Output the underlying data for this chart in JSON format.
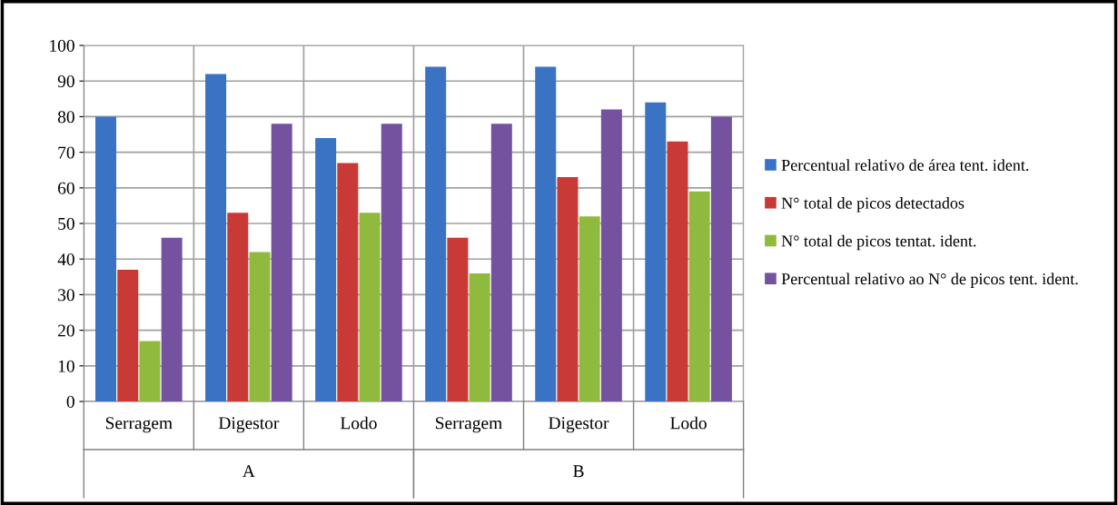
{
  "chart_data": {
    "type": "bar",
    "categories": [
      "Serragem",
      "Digestor",
      "Lodo",
      "Serragem",
      "Digestor",
      "Lodo"
    ],
    "series": [
      {
        "name": "Percentual relativo de área tent. ident.",
        "color": "#3a73c4",
        "values": [
          80,
          92,
          74,
          94,
          94,
          84
        ]
      },
      {
        "name": "N° total de picos detectados",
        "color": "#c93a36",
        "values": [
          37,
          53,
          67,
          46,
          63,
          73
        ]
      },
      {
        "name": "N° total de picos tentat. ident.",
        "color": "#8fba3e",
        "values": [
          17,
          42,
          53,
          36,
          52,
          59
        ]
      },
      {
        "name": "Percentual relativo ao N° de picos tent. ident.",
        "color": "#7452a0",
        "values": [
          46,
          78,
          78,
          78,
          82,
          80
        ]
      }
    ],
    "annotations": [
      "A",
      "B"
    ],
    "ylim": [
      0,
      100
    ],
    "yticks": [
      0,
      10,
      20,
      30,
      40,
      50,
      60,
      70,
      80,
      90,
      100
    ],
    "grid": true,
    "legend": "right"
  }
}
